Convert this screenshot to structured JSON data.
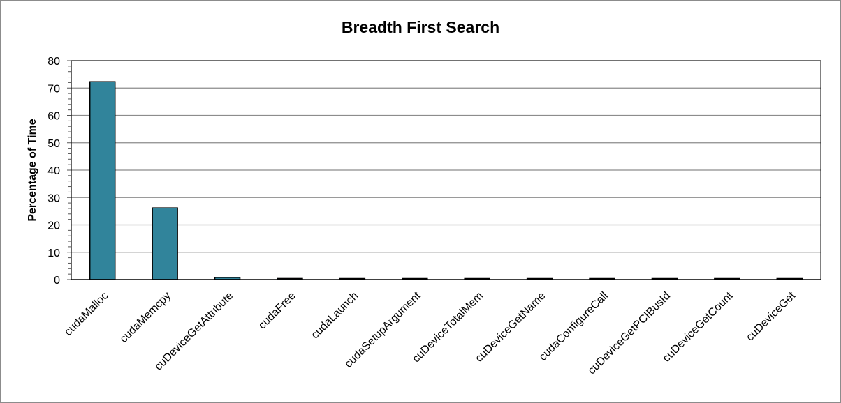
{
  "chart_data": {
    "type": "bar",
    "title": "Breadth First Search",
    "xlabel": "",
    "ylabel": "Percentage of Time",
    "ylim": [
      0,
      80
    ],
    "yticks": [
      0,
      10,
      20,
      30,
      40,
      50,
      60,
      70,
      80
    ],
    "grid": true,
    "legend": "none",
    "categories": [
      "cudaMalloc",
      "cudaMemcpy",
      "cuDeviceGetAttribute",
      "cudaFree",
      "cudaLaunch",
      "cudaSetupArgument",
      "cuDeviceTotalMem",
      "cuDeviceGetName",
      "cudaConfigureCall",
      "cuDeviceGetPCIBusId",
      "cuDeviceGetCount",
      "cuDeviceGet"
    ],
    "values": [
      72.3,
      26.2,
      0.8,
      0.4,
      0.15,
      0.1,
      0.1,
      0.1,
      0.1,
      0.05,
      0.05,
      0.05
    ],
    "bar_color": "#31849b"
  }
}
